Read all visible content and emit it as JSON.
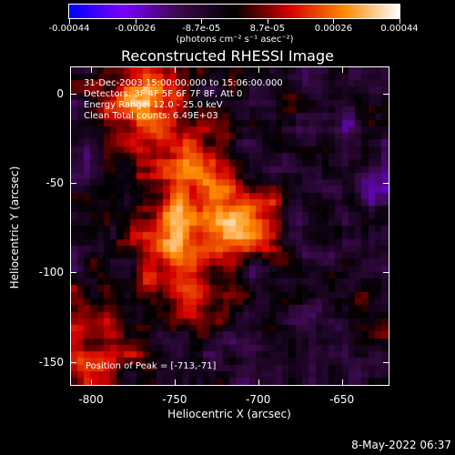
{
  "colorbar": {
    "tick_labels": [
      "-0.00044",
      "-0.00026",
      "-8.7e-05",
      "8.7e-05",
      "0.00026",
      "0.00044"
    ],
    "units": "(photons cm⁻² s⁻¹ asec⁻²)",
    "range": [
      -0.00044,
      0.00044
    ],
    "colors": [
      "#0000ff",
      "#7a00ff",
      "#3a0a4a",
      "#000000",
      "#d40000",
      "#ff8a00",
      "#ffffff"
    ]
  },
  "chart_data": {
    "type": "heatmap",
    "title": "Reconstructed RHESSI Image",
    "xlabel": "Heliocentric X (arcsec)",
    "ylabel": "Heliocentric Y (arcsec)",
    "xlim": [
      -812,
      -622
    ],
    "ylim": [
      -163,
      15
    ],
    "x_ticks": [
      -800,
      -750,
      -700,
      -650
    ],
    "y_ticks": [
      0,
      -50,
      -100,
      -150
    ],
    "x_tick_labels": [
      "-800",
      "-750",
      "-700",
      "-650"
    ],
    "y_tick_labels": [
      "0",
      "-50",
      "-100",
      "-150"
    ],
    "peak": [
      -713,
      -71
    ],
    "info_lines": [
      "31-Dec-2003 15:00:00.000 to 15:06:00.000",
      "Detectors: 3F 4F 5F 6F 7F 8F, Att 0",
      "Energy Range: 12.0 - 25.0 keV",
      "Clean     Total counts: 6.49E+03"
    ],
    "peak_text": "Position of Peak = [-713,-71]"
  },
  "timestamp": "8-May-2022 06:37"
}
